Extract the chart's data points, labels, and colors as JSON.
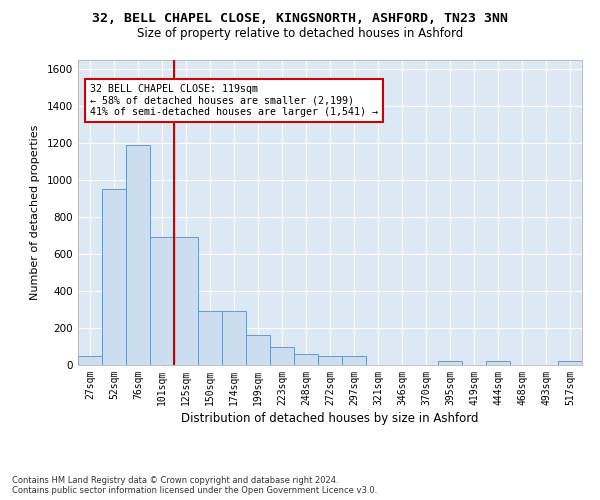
{
  "title_line1": "32, BELL CHAPEL CLOSE, KINGSNORTH, ASHFORD, TN23 3NN",
  "title_line2": "Size of property relative to detached houses in Ashford",
  "xlabel": "Distribution of detached houses by size in Ashford",
  "ylabel": "Number of detached properties",
  "footnote": "Contains HM Land Registry data © Crown copyright and database right 2024.\nContains public sector information licensed under the Open Government Licence v3.0.",
  "bin_labels": [
    "27sqm",
    "52sqm",
    "76sqm",
    "101sqm",
    "125sqm",
    "150sqm",
    "174sqm",
    "199sqm",
    "223sqm",
    "248sqm",
    "272sqm",
    "297sqm",
    "321sqm",
    "346sqm",
    "370sqm",
    "395sqm",
    "419sqm",
    "444sqm",
    "468sqm",
    "493sqm",
    "517sqm"
  ],
  "bar_values": [
    50,
    950,
    1190,
    690,
    690,
    290,
    290,
    160,
    100,
    60,
    50,
    50,
    0,
    0,
    0,
    20,
    0,
    20,
    0,
    0,
    20
  ],
  "bar_color": "#ccddf0",
  "bar_edge_color": "#6699cc",
  "vline_x_index": 3,
  "vline_color": "#cc0000",
  "annotation_text": "32 BELL CHAPEL CLOSE: 119sqm\n← 58% of detached houses are smaller (2,199)\n41% of semi-detached houses are larger (1,541) →",
  "annotation_box_color": "#ffffff",
  "annotation_box_edge": "#cc0000",
  "ylim": [
    0,
    1650
  ],
  "yticks": [
    0,
    200,
    400,
    600,
    800,
    1000,
    1200,
    1400,
    1600
  ],
  "fig_bg_color": "#ffffff",
  "plot_bg_color": "#dde8f5",
  "grid_color": "#ffffff"
}
